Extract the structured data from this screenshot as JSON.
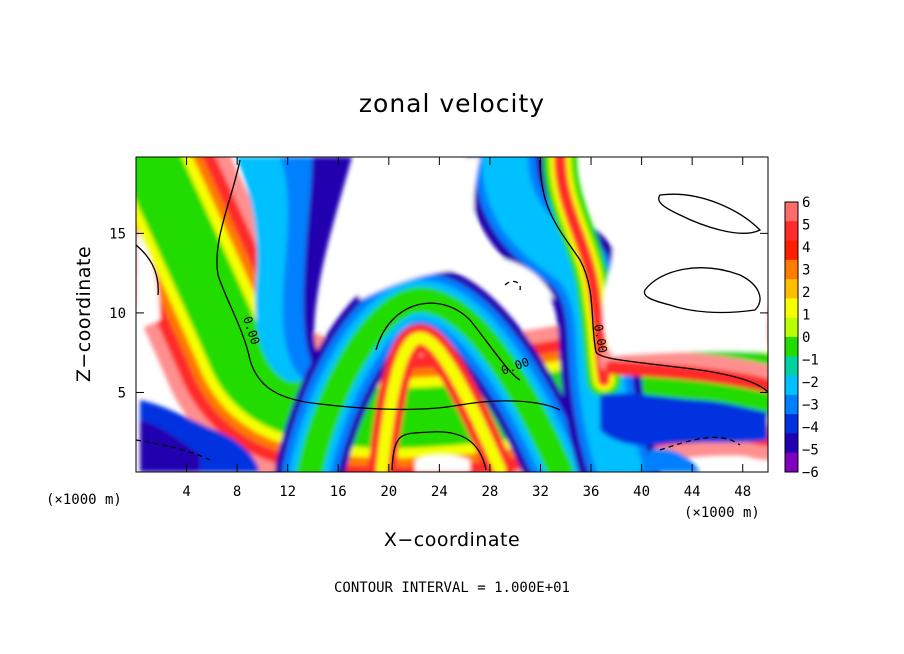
{
  "chart_data": {
    "type": "heatmap",
    "title": "zonal velocity",
    "xlabel": "X−coordinate",
    "ylabel": "Z−coordinate",
    "x_unit_left": "(×1000 m)",
    "x_unit_right": "(×1000 m)",
    "xlim": [
      0,
      50
    ],
    "ylim": [
      0,
      19.8
    ],
    "xticks": [
      4,
      8,
      12,
      16,
      20,
      24,
      28,
      32,
      36,
      40,
      44,
      48
    ],
    "yticks": [
      5,
      10,
      15
    ],
    "colorbar": {
      "levels": [
        6,
        5,
        4,
        3,
        2,
        1,
        0,
        -1,
        -2,
        -3,
        -4,
        -5,
        -6
      ],
      "labels": [
        "6",
        "5",
        "4",
        "3",
        "2",
        "1",
        "0",
        "−1",
        "−2",
        "−3",
        "−4",
        "−5",
        "−6"
      ],
      "colors": [
        "#ff6a6a",
        "#ff2a2a",
        "#ff1f00",
        "#ff7a00",
        "#ffbf00",
        "#f5ff00",
        "#b8ff00",
        "#21dc00",
        "#00d2a0",
        "#00c0ff",
        "#0080ff",
        "#0030e0",
        "#2000b0",
        "#8000c0"
      ],
      "top_color": "#ff9a9a",
      "bottom_color": "#8000c0"
    },
    "contour_labels": [
      "0.00",
      "0.00",
      "0.00"
    ],
    "contour_interval_text": "CONTOUR INTERVAL = 1.000E+01",
    "grid": false
  }
}
